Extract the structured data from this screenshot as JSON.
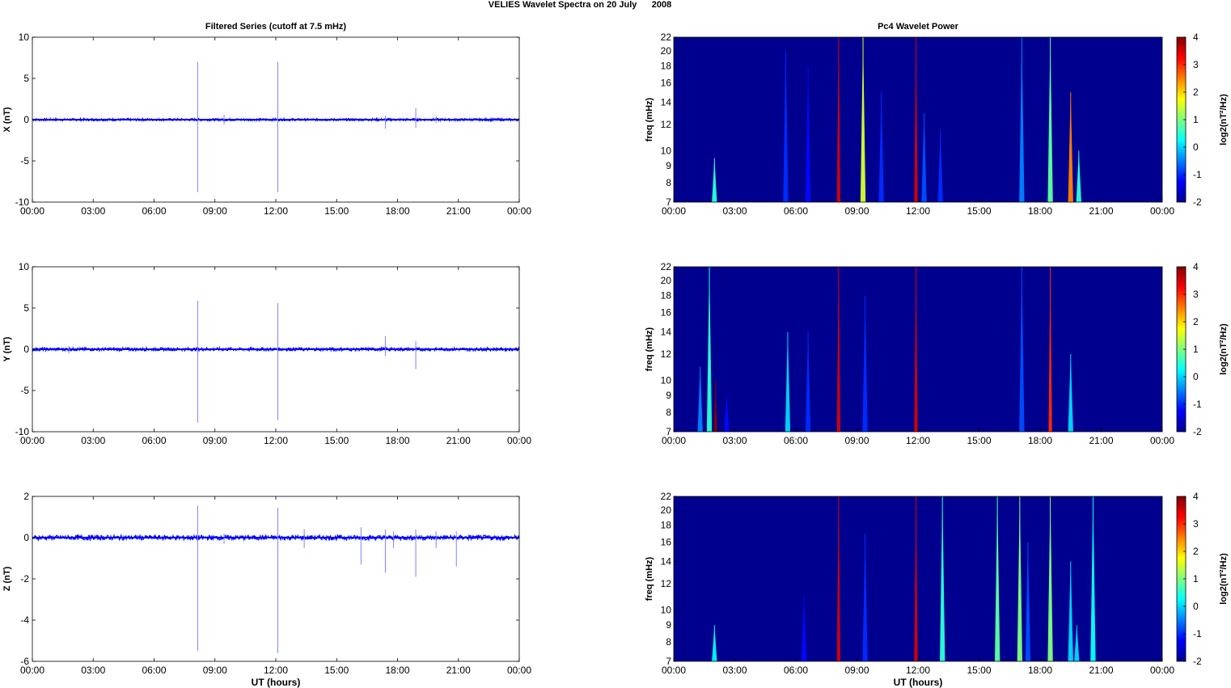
{
  "figure": {
    "title": "VELIES Wavelet Spectra on 20 July      2008"
  },
  "chart_data": [
    {
      "type": "line",
      "title": "Filtered Series (cutoff at 7.5 mHz)",
      "xlabel": "",
      "ylabel": "X (nT)",
      "xticks": [
        "00:00",
        "03:00",
        "06:00",
        "09:00",
        "12:00",
        "15:00",
        "18:00",
        "21:00",
        "00:00"
      ],
      "xlim": [
        0,
        24
      ],
      "ylim": [
        -10,
        10
      ],
      "yticks": [
        "-10",
        "-5",
        "0",
        "5",
        "10"
      ],
      "series_color": "#0000ff",
      "baseline_noise": 0.15,
      "spikes": [
        {
          "x": 8.15,
          "high": 7.0,
          "low": -8.8
        },
        {
          "x": 9.45,
          "high": 0.6,
          "low": -0.6
        },
        {
          "x": 12.1,
          "high": 7.0,
          "low": -8.8
        },
        {
          "x": 17.4,
          "high": 0.5,
          "low": -1.1
        },
        {
          "x": 18.9,
          "high": 1.4,
          "low": -1.0
        },
        {
          "x": 19.9,
          "high": 0.4,
          "low": -0.4
        }
      ]
    },
    {
      "type": "heatmap",
      "title": "Pc4 Wavelet Power",
      "ylabel": "freq (mHz)",
      "xticks": [
        "00:00",
        "03:00",
        "06:00",
        "09:00",
        "12:00",
        "15:00",
        "18:00",
        "21:00",
        "00:00"
      ],
      "yticks": [
        "7",
        "8",
        "9",
        "10",
        "12",
        "14",
        "16",
        "18",
        "20",
        "22"
      ],
      "colorbar_label": "log2(nT²/Hz)",
      "colorbar_ticks": [
        "4",
        "3",
        "2",
        "1",
        "0",
        "-1",
        "-2"
      ],
      "clim": [
        -2,
        4
      ],
      "events": [
        {
          "x": 2.0,
          "fmax": 9.5,
          "level": 0.5
        },
        {
          "x": 5.5,
          "fmax": 20.0,
          "level": -1.0
        },
        {
          "x": 6.6,
          "fmax": 18.0,
          "level": -1.2
        },
        {
          "x": 8.1,
          "fmax": 22.0,
          "level": 3.5
        },
        {
          "x": 9.3,
          "fmax": 22.0,
          "level": 1.5
        },
        {
          "x": 10.2,
          "fmax": 15.0,
          "level": -1.0
        },
        {
          "x": 11.9,
          "fmax": 22.0,
          "level": 3.5
        },
        {
          "x": 12.3,
          "fmax": 13.0,
          "level": -0.8
        },
        {
          "x": 13.1,
          "fmax": 11.5,
          "level": -1.0
        },
        {
          "x": 17.1,
          "fmax": 22.0,
          "level": -0.5
        },
        {
          "x": 18.5,
          "fmax": 22.0,
          "level": 0.8
        },
        {
          "x": 19.5,
          "fmax": 15.0,
          "level": 2.5
        },
        {
          "x": 19.9,
          "fmax": 10.0,
          "level": 0.5
        }
      ]
    },
    {
      "type": "line",
      "title": "",
      "xlabel": "",
      "ylabel": "Y (nT)",
      "xticks": [
        "00:00",
        "03:00",
        "06:00",
        "09:00",
        "12:00",
        "15:00",
        "18:00",
        "21:00",
        "00:00"
      ],
      "xlim": [
        0,
        24
      ],
      "ylim": [
        -10,
        10
      ],
      "yticks": [
        "-10",
        "-5",
        "0",
        "5",
        "10"
      ],
      "series_color": "#0000ff",
      "baseline_noise": 0.2,
      "spikes": [
        {
          "x": 1.8,
          "high": 0.4,
          "low": -0.5
        },
        {
          "x": 8.15,
          "high": 5.9,
          "low": -8.9
        },
        {
          "x": 12.1,
          "high": 5.6,
          "low": -8.6
        },
        {
          "x": 17.4,
          "high": 1.6,
          "low": -0.8
        },
        {
          "x": 18.9,
          "high": 1.0,
          "low": -2.4
        }
      ]
    },
    {
      "type": "heatmap",
      "title": "",
      "ylabel": "freq (mHz)",
      "xticks": [
        "00:00",
        "03:00",
        "06:00",
        "09:00",
        "12:00",
        "15:00",
        "18:00",
        "21:00",
        "00:00"
      ],
      "yticks": [
        "7",
        "8",
        "9",
        "10",
        "12",
        "14",
        "16",
        "18",
        "20",
        "22"
      ],
      "colorbar_label": "log2(nT²/Hz)",
      "colorbar_ticks": [
        "4",
        "3",
        "2",
        "1",
        "0",
        "-1",
        "-2"
      ],
      "clim": [
        -2,
        4
      ],
      "events": [
        {
          "x": 1.3,
          "fmax": 11.0,
          "level": -0.5
        },
        {
          "x": 1.75,
          "fmax": 22.0,
          "level": 0.5
        },
        {
          "x": 2.05,
          "fmax": 10.0,
          "level": 4.0
        },
        {
          "x": 2.6,
          "fmax": 9.0,
          "level": -1.2
        },
        {
          "x": 5.6,
          "fmax": 14.0,
          "level": 0.0
        },
        {
          "x": 6.6,
          "fmax": 14.0,
          "level": -1.0
        },
        {
          "x": 8.1,
          "fmax": 22.0,
          "level": 3.5
        },
        {
          "x": 9.4,
          "fmax": 18.0,
          "level": -1.0
        },
        {
          "x": 11.9,
          "fmax": 22.0,
          "level": 3.5
        },
        {
          "x": 17.1,
          "fmax": 22.0,
          "level": -0.8
        },
        {
          "x": 18.5,
          "fmax": 22.0,
          "level": 3.0
        },
        {
          "x": 19.5,
          "fmax": 12.0,
          "level": 0.0
        }
      ]
    },
    {
      "type": "line",
      "title": "",
      "xlabel": "UT (hours)",
      "ylabel": "Z (nT)",
      "xticks": [
        "00:00",
        "03:00",
        "06:00",
        "09:00",
        "12:00",
        "15:00",
        "18:00",
        "21:00",
        "00:00"
      ],
      "xlim": [
        0,
        24
      ],
      "ylim": [
        -6,
        2
      ],
      "yticks": [
        "-6",
        "-4",
        "-2",
        "0",
        "2"
      ],
      "series_color": "#0000ff",
      "baseline_noise": 0.12,
      "spikes": [
        {
          "x": 8.15,
          "high": 1.55,
          "low": -5.5
        },
        {
          "x": 9.45,
          "high": 0.2,
          "low": -0.3
        },
        {
          "x": 12.1,
          "high": 1.45,
          "low": -5.6
        },
        {
          "x": 13.4,
          "high": 0.4,
          "low": -0.5
        },
        {
          "x": 16.2,
          "high": 0.5,
          "low": -1.3
        },
        {
          "x": 17.4,
          "high": 0.4,
          "low": -1.7
        },
        {
          "x": 17.8,
          "high": 0.3,
          "low": -0.5
        },
        {
          "x": 18.9,
          "high": 0.4,
          "low": -1.9
        },
        {
          "x": 19.9,
          "high": 0.3,
          "low": -0.5
        },
        {
          "x": 20.9,
          "high": 0.3,
          "low": -1.4
        }
      ]
    },
    {
      "type": "heatmap",
      "title": "",
      "xlabel": "UT (hours)",
      "ylabel": "freq (mHz)",
      "xticks": [
        "00:00",
        "03:00",
        "06:00",
        "09:00",
        "12:00",
        "15:00",
        "18:00",
        "21:00",
        "00:00"
      ],
      "yticks": [
        "7",
        "8",
        "9",
        "10",
        "12",
        "14",
        "16",
        "18",
        "20",
        "22"
      ],
      "colorbar_label": "log2(nT²/Hz)",
      "colorbar_ticks": [
        "4",
        "3",
        "2",
        "1",
        "0",
        "-1",
        "-2"
      ],
      "clim": [
        -2,
        4
      ],
      "events": [
        {
          "x": 2.0,
          "fmax": 9.0,
          "level": 0.2
        },
        {
          "x": 6.4,
          "fmax": 11.0,
          "level": -1.2
        },
        {
          "x": 8.1,
          "fmax": 22.0,
          "level": 3.5
        },
        {
          "x": 9.4,
          "fmax": 17.0,
          "level": -1.0
        },
        {
          "x": 11.9,
          "fmax": 22.0,
          "level": 3.5
        },
        {
          "x": 13.2,
          "fmax": 22.0,
          "level": 0.5
        },
        {
          "x": 15.9,
          "fmax": 22.0,
          "level": 0.8
        },
        {
          "x": 17.0,
          "fmax": 22.0,
          "level": 1.0
        },
        {
          "x": 17.4,
          "fmax": 16.0,
          "level": -0.8
        },
        {
          "x": 18.5,
          "fmax": 22.0,
          "level": 1.0
        },
        {
          "x": 19.5,
          "fmax": 14.0,
          "level": 0.0
        },
        {
          "x": 19.8,
          "fmax": 9.0,
          "level": 0.0
        },
        {
          "x": 20.6,
          "fmax": 22.0,
          "level": 0.3
        }
      ]
    }
  ]
}
